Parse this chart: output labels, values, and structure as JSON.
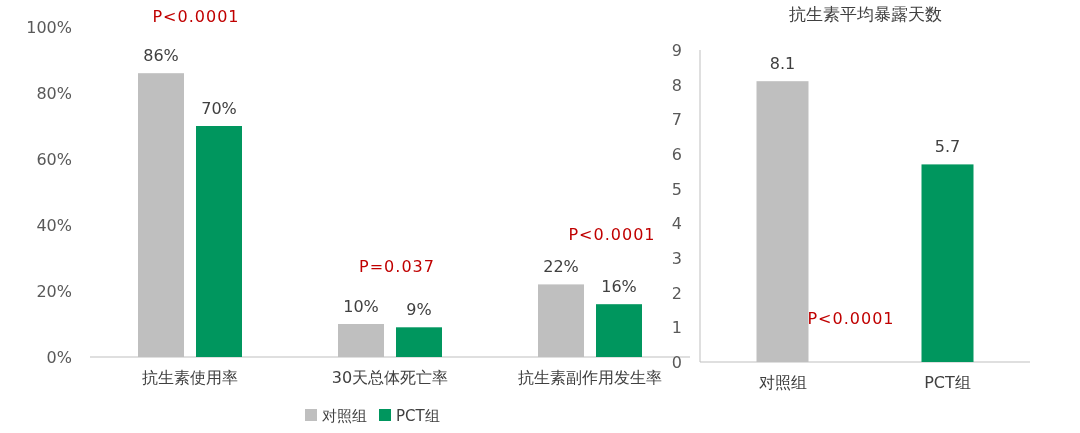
{
  "chart_data": [
    {
      "type": "bar",
      "categories": [
        "抗生素使用率",
        "30天总体死亡率",
        "抗生素副作用发生率"
      ],
      "series": [
        {
          "name": "对照组",
          "color": "#bfbfbf",
          "values": [
            86,
            10,
            22
          ],
          "value_labels": [
            "86%",
            "10%",
            "22%"
          ]
        },
        {
          "name": "PCT组",
          "color": "#00965e",
          "values": [
            70,
            9,
            16
          ],
          "value_labels": [
            "70%",
            "9%",
            "16%"
          ]
        }
      ],
      "ylim": [
        0,
        100
      ],
      "yticks": [
        {
          "value": 0,
          "label": "0%"
        },
        {
          "value": 20,
          "label": "20%"
        },
        {
          "value": 40,
          "label": "40%"
        },
        {
          "value": 60,
          "label": "60%"
        },
        {
          "value": 80,
          "label": "80%"
        },
        {
          "value": 100,
          "label": "100%"
        }
      ],
      "annotations": [
        "P<0.0001",
        "P=0.037",
        "P<0.0001"
      ],
      "legend": "bottom",
      "grid": false
    },
    {
      "type": "bar",
      "title": "抗生素平均暴露天数",
      "categories": [
        "对照组",
        "PCT组"
      ],
      "values": [
        8.1,
        5.7
      ],
      "colors": [
        "#bfbfbf",
        "#00965e"
      ],
      "ylim": [
        0,
        9
      ],
      "yticks": [
        0,
        1,
        2,
        3,
        4,
        5,
        6,
        7,
        8,
        9
      ],
      "data_labels": true,
      "annotations": [
        "P<0.0001"
      ],
      "grid": false
    }
  ]
}
